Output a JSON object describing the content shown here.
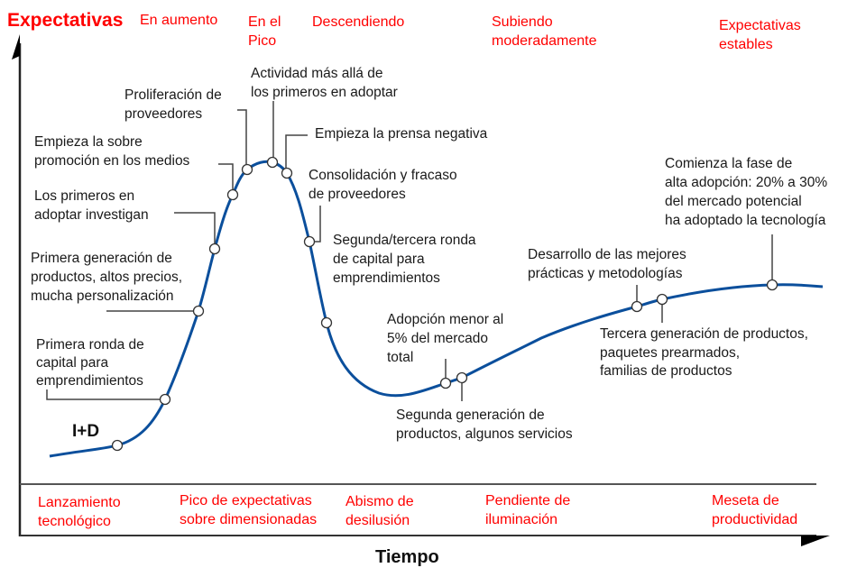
{
  "y_axis_title": "Expectativas",
  "x_axis_title": "Tiempo",
  "curve_color": "#0b4f9c",
  "accent_color": "#ff0000",
  "expectation_labels": [
    [
      "En aumento"
    ],
    [
      "En el",
      "Pico"
    ],
    [
      "Descendiendo"
    ],
    [
      "Subiendo",
      "moderadamente"
    ],
    [
      "Expectativas",
      "estables"
    ]
  ],
  "phases": [
    [
      "Lanzamiento",
      "tecnológico"
    ],
    [
      "Pico de expectativas",
      "sobre dimensionadas"
    ],
    [
      "Abismo de",
      "desilusión"
    ],
    [
      "Pendiente de",
      "iluminación"
    ],
    [
      "Meseta de",
      "productividad"
    ]
  ],
  "start_label": "I+D",
  "annotations": [
    [
      "Primera ronda de",
      "capital para",
      "emprendimientos"
    ],
    [
      "Primera generación de",
      "productos, altos precios,",
      "mucha personalización"
    ],
    [
      "Los primeros en",
      "adoptar investigan"
    ],
    [
      "Empieza la sobre",
      "promoción en los medios"
    ],
    [
      "Proliferación de",
      "proveedores"
    ],
    [
      "Actividad más allá de",
      "los primeros en adoptar"
    ],
    [
      "Empieza la prensa negativa"
    ],
    [
      "Consolidación y fracaso",
      "de proveedores"
    ],
    [
      "Segunda/tercera ronda",
      "de capital para",
      "emprendimientos"
    ],
    [
      "Adopción menor al",
      "5% del mercado",
      "total"
    ],
    [
      "Segunda generación de",
      "productos, algunos servicios"
    ],
    [
      "Desarrollo de las mejores",
      "prácticas y metodologías"
    ],
    [
      "Tercera generación de productos,",
      "paquetes prearmados,",
      "familias de productos"
    ],
    [
      "Comienza la fase de",
      "alta adopción: 20% a 30%",
      "del mercado potencial",
      "ha adoptado la tecnología"
    ]
  ]
}
